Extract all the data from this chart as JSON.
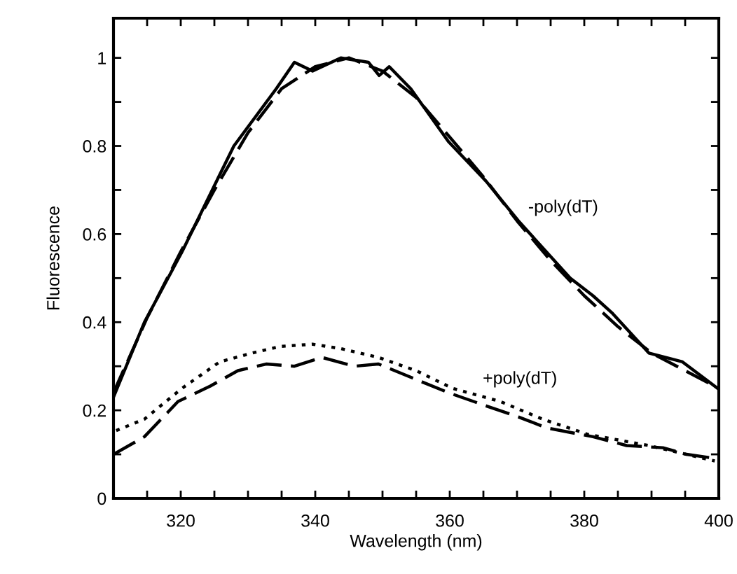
{
  "chart_data": {
    "type": "line",
    "xlabel": "Wavelength (nm)",
    "ylabel": "Fluorescence",
    "xlim": [
      310,
      400
    ],
    "ylim": [
      0,
      1.09
    ],
    "xticks": [
      {
        "value": 315,
        "label": null
      },
      320,
      {
        "value": 325,
        "label": null
      },
      {
        "value": 330,
        "label": null
      },
      {
        "value": 335,
        "label": null
      },
      340,
      {
        "value": 345,
        "label": null
      },
      {
        "value": 350,
        "label": null
      },
      {
        "value": 355,
        "label": null
      },
      360,
      {
        "value": 365,
        "label": null
      },
      {
        "value": 370,
        "label": null
      },
      {
        "value": 375,
        "label": null
      },
      380,
      {
        "value": 385,
        "label": null
      },
      {
        "value": 390,
        "label": null
      },
      {
        "value": 395,
        "label": null
      },
      400
    ],
    "yticks": [
      0,
      {
        "value": 0.1,
        "label": null
      },
      0.2,
      {
        "value": 0.3,
        "label": null
      },
      0.4,
      {
        "value": 0.5,
        "label": null
      },
      0.6,
      {
        "value": 0.7,
        "label": null
      },
      0.8,
      {
        "value": 0.9,
        "label": null
      },
      1
    ],
    "grid": false,
    "legend": false,
    "series": [
      {
        "color": "#000000",
        "line_style": "solid",
        "x": [
          310,
          314.6,
          318.8,
          320.2,
          325,
          327.9,
          334.2,
          336.9,
          339.6,
          343.8,
          347.9,
          349.5,
          351,
          354.2,
          359.8,
          365.4,
          370.2,
          377.9,
          381.3,
          384.2,
          389.6,
          394.6,
          399.8
        ],
        "values": [
          0.23,
          0.4,
          0.52,
          0.56,
          0.71,
          0.8,
          0.93,
          0.99,
          0.97,
          1.0,
          0.99,
          0.96,
          0.98,
          0.93,
          0.81,
          0.72,
          0.63,
          0.5,
          0.46,
          0.42,
          0.33,
          0.31,
          0.25
        ]
      },
      {
        "color": "#000000",
        "line_style": "dashed",
        "x": [
          310,
          315,
          320,
          325,
          330,
          335,
          340,
          345,
          350,
          355,
          360,
          365,
          370,
          375,
          380,
          385,
          390,
          395,
          400
        ],
        "values": [
          0.24,
          0.41,
          0.56,
          0.7,
          0.83,
          0.93,
          0.98,
          1.0,
          0.97,
          0.91,
          0.82,
          0.73,
          0.63,
          0.54,
          0.46,
          0.39,
          0.33,
          0.29,
          0.25
        ]
      },
      {
        "color": "#000000",
        "line_style": "dashed",
        "x": [
          310,
          314.6,
          319.6,
          324.4,
          328.5,
          332.7,
          336.9,
          341,
          345.8,
          349.4,
          355,
          359.8,
          365.4,
          370.2,
          374.4,
          381.3,
          386.3,
          391.7,
          395.2,
          399.8
        ],
        "values": [
          0.1,
          0.14,
          0.22,
          0.255,
          0.29,
          0.305,
          0.3,
          0.32,
          0.3,
          0.305,
          0.27,
          0.24,
          0.21,
          0.185,
          0.16,
          0.14,
          0.12,
          0.115,
          0.1,
          0.09
        ]
      },
      {
        "color": "#000000",
        "line_style": "dotted",
        "x": [
          310.4,
          314.6,
          320.2,
          325.8,
          330.6,
          334.8,
          339.6,
          343.8,
          349.4,
          355,
          360.4,
          367.5,
          373.8,
          380.6,
          389.6,
          399.4
        ],
        "values": [
          0.154,
          0.18,
          0.25,
          0.31,
          0.33,
          0.345,
          0.35,
          0.34,
          0.32,
          0.29,
          0.25,
          0.22,
          0.18,
          0.145,
          0.12,
          0.085
        ]
      }
    ],
    "annotations": [
      "-poly(dT)",
      "+poly(dT)"
    ]
  }
}
